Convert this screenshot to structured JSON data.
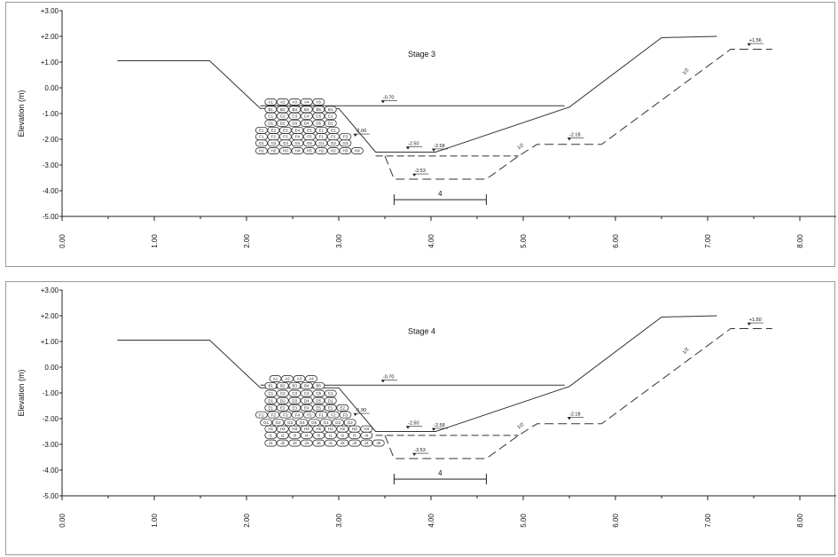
{
  "y_axis": {
    "title": "Elevation (m)",
    "ticks": [
      "+3.00",
      "+2.00",
      "+1.00",
      "0.00",
      "-1.00",
      "-2.00",
      "-3.00",
      "-4.00",
      "-5.00"
    ]
  },
  "x_axis": {
    "ticks": [
      "0.00",
      "1.00",
      "2.00",
      "3.00",
      "4.00",
      "5.00",
      "6.00",
      "7.00",
      "8.00"
    ]
  },
  "colors": {
    "line": "#333333",
    "frame": "#9a9a9a"
  },
  "panels": [
    {
      "stage_label": "Stage 3",
      "annotations": {
        "water_level": "-0.70",
        "top_left_level": "-2.00",
        "excavation_level_a": "-2.50",
        "excavation_level_b": "-2.58",
        "dredge_level": "-3.53",
        "berm_level": "-2.18",
        "right_slope": "1/2",
        "upper_slope": "1/2",
        "crest_level": "+1.56",
        "width": "4"
      }
    },
    {
      "stage_label": "Stage 4",
      "annotations": {
        "water_level": "-0.70",
        "top_left_level": "-1.90",
        "excavation_level_a": "-2.50",
        "excavation_level_b": "-2.58",
        "dredge_level": "-3.53",
        "berm_level": "-2.18",
        "right_slope": "1/2",
        "upper_slope": "1/2",
        "crest_level": "+1.50",
        "width": "4"
      }
    }
  ]
}
